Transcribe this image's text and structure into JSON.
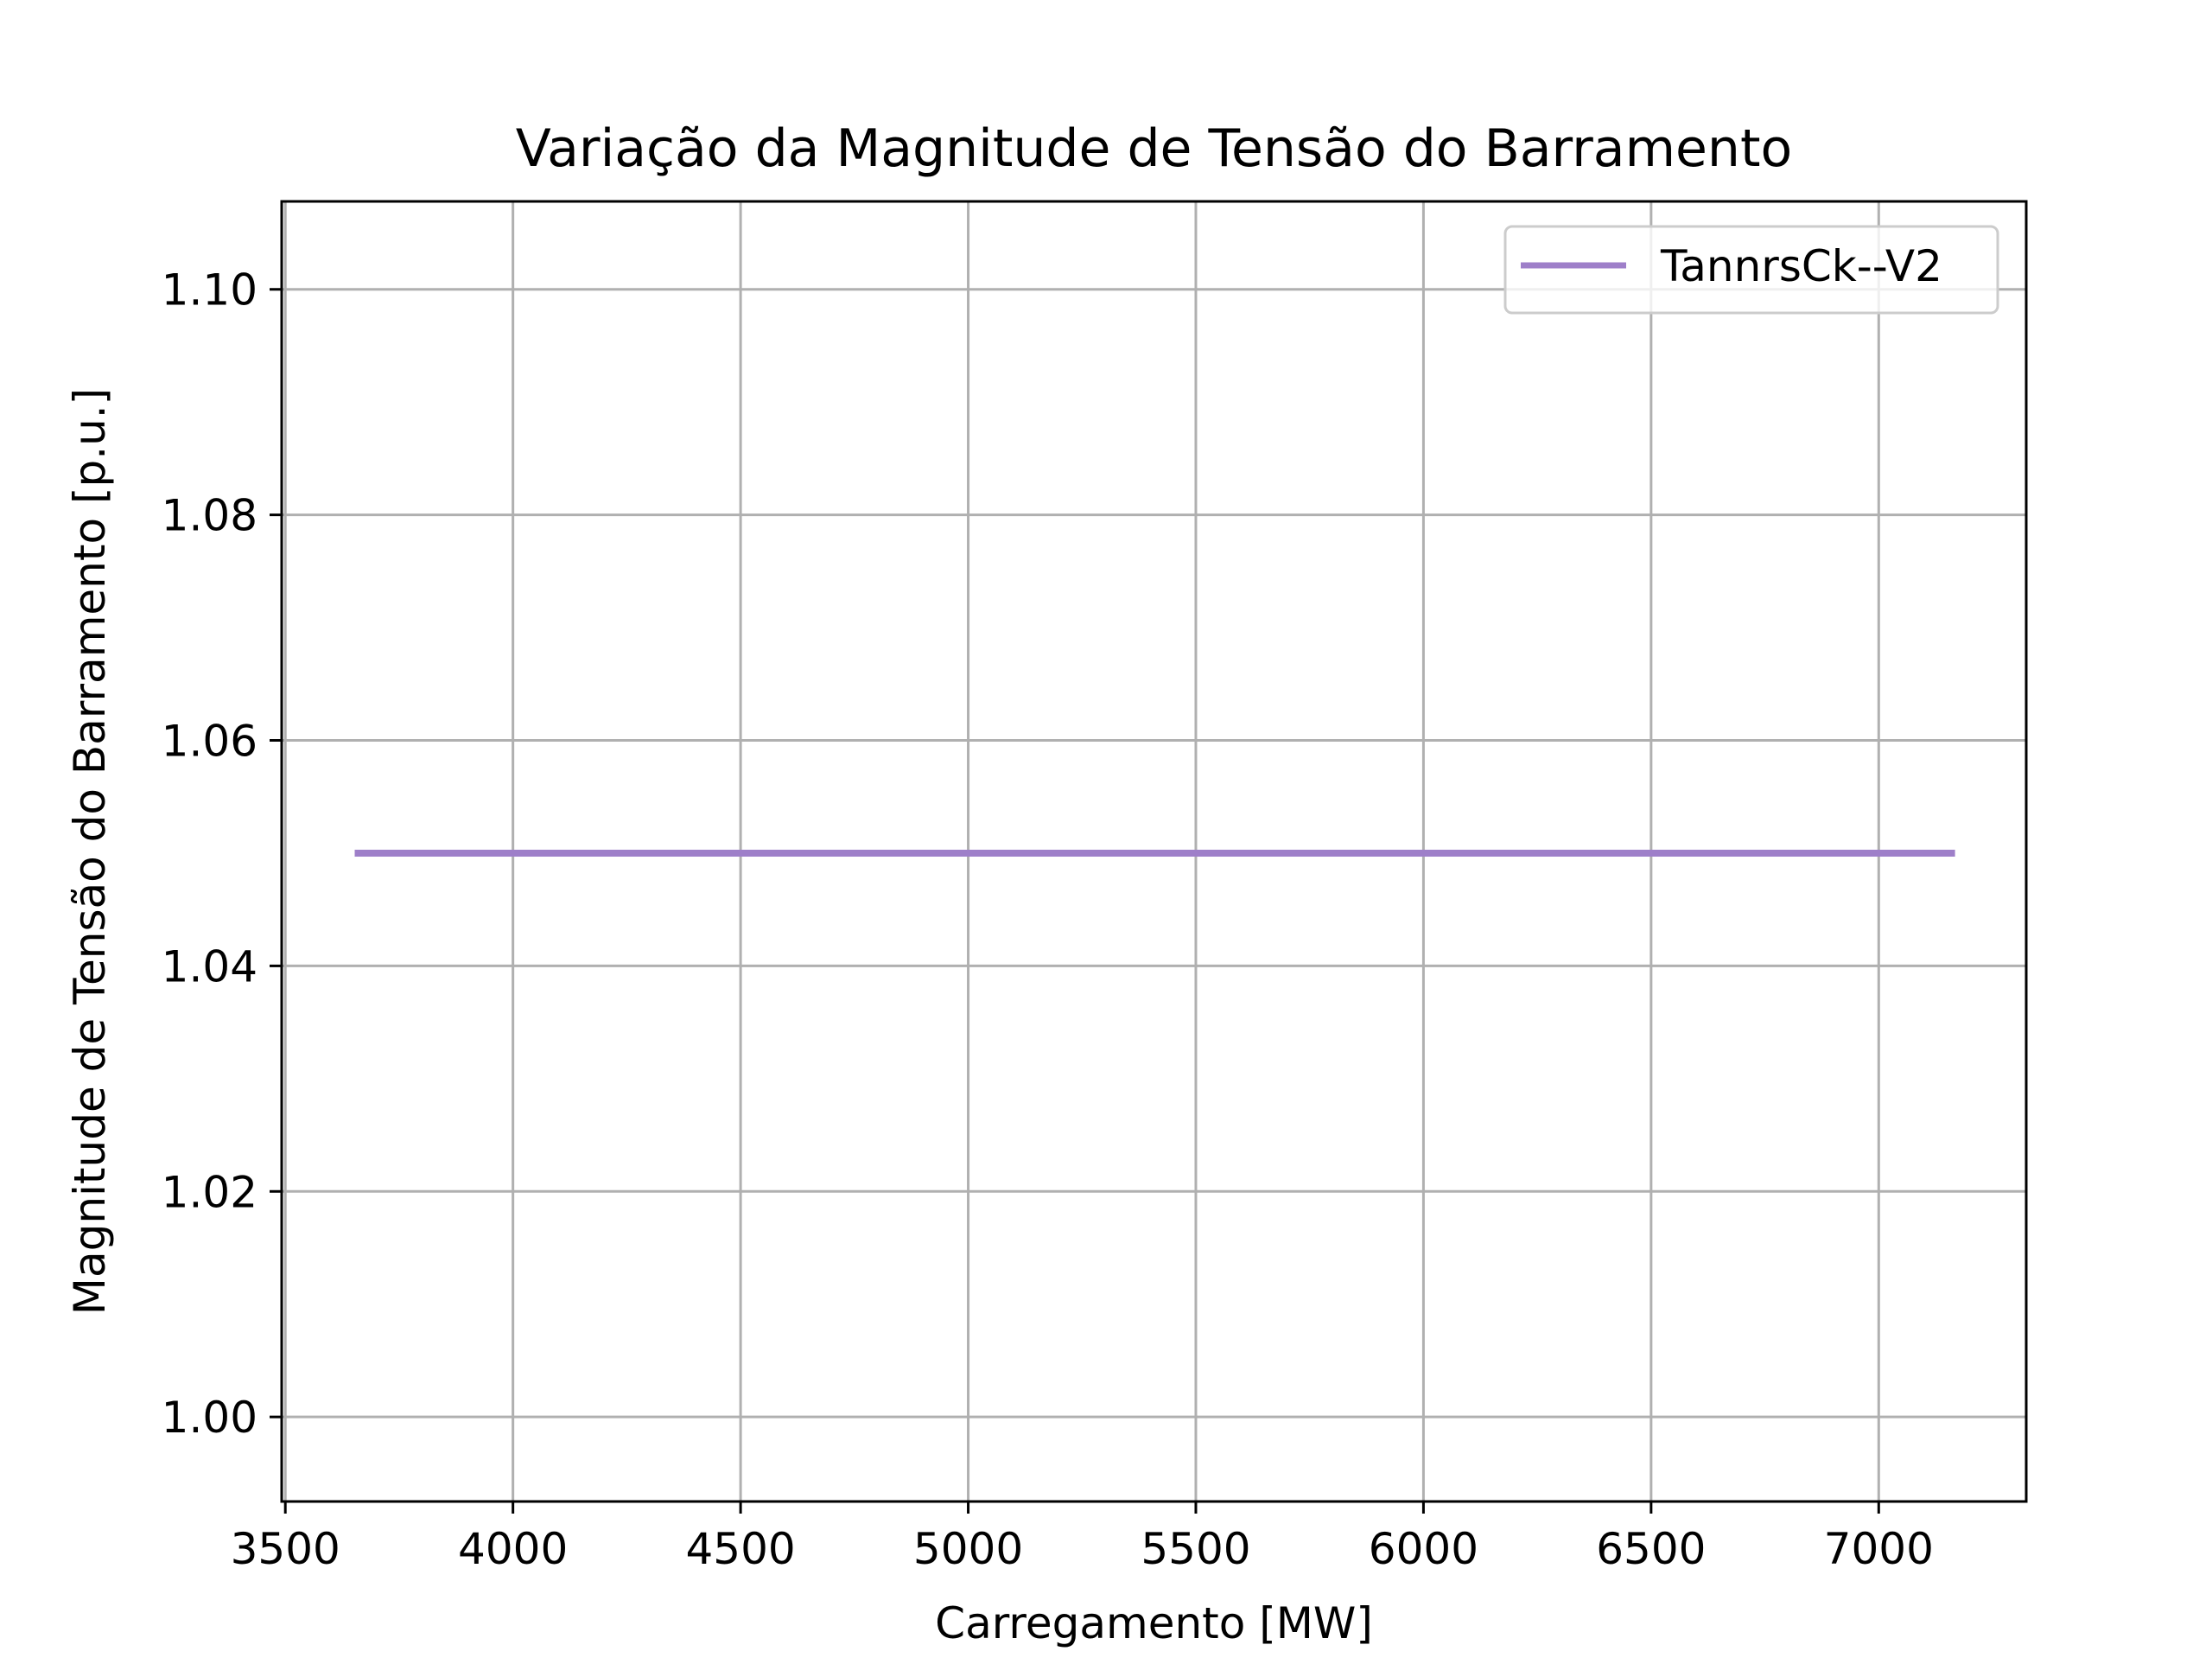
{
  "chart_data": {
    "type": "line",
    "title": "Variação da Magnitude de Tensão do Barramento",
    "xlabel": "Carregamento [MW]",
    "ylabel": "Magnitude de Tensão do Barramento [p.u.]",
    "xlim": [
      3492,
      7324
    ],
    "ylim": [
      0.9925,
      1.1078
    ],
    "xticks": [
      3500,
      4000,
      4500,
      5000,
      5500,
      6000,
      6500,
      7000
    ],
    "yticks": [
      1.0,
      1.02,
      1.04,
      1.06,
      1.08,
      1.1
    ],
    "ytick_labels": [
      "1.00",
      "1.02",
      "1.04",
      "1.06",
      "1.08",
      "1.10"
    ],
    "grid": true,
    "legend_position": "top-right",
    "series": [
      {
        "name": "TannrsCk--V2",
        "color": "#9e7fc9",
        "x": [
          3660,
          7160
        ],
        "y": [
          1.05,
          1.05
        ]
      }
    ]
  }
}
